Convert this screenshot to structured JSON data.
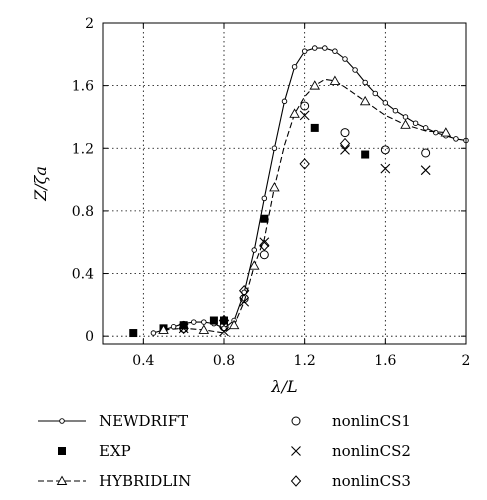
{
  "chart_data": {
    "type": "line",
    "title": "",
    "xlabel": "λ/L",
    "ylabel": "Z/ζa",
    "xlim": [
      0.2,
      2.0
    ],
    "ylim": [
      -0.05,
      2.0
    ],
    "xticks": [
      0.4,
      0.8,
      1.2,
      1.6,
      2.0
    ],
    "yticks": [
      0,
      0.4,
      0.8,
      1.2,
      1.6,
      2.0
    ],
    "xtick_labels": [
      "0.4",
      "0.8",
      "1.2",
      "1.6",
      "2"
    ],
    "ytick_labels": [
      "0",
      "0.4",
      "0.8",
      "1.2",
      "1.6",
      "2"
    ],
    "grid": true,
    "legend_position": "bottom",
    "series": [
      {
        "name": "NEWDRIFT",
        "style": "solid-line-circle",
        "x": [
          0.45,
          0.5,
          0.55,
          0.6,
          0.65,
          0.7,
          0.75,
          0.8,
          0.85,
          0.9,
          0.95,
          1.0,
          1.05,
          1.1,
          1.15,
          1.2,
          1.25,
          1.3,
          1.35,
          1.4,
          1.45,
          1.5,
          1.55,
          1.6,
          1.65,
          1.7,
          1.75,
          1.8,
          1.85,
          1.9,
          1.95,
          2.0
        ],
        "y": [
          0.02,
          0.04,
          0.06,
          0.08,
          0.09,
          0.09,
          0.08,
          0.05,
          0.1,
          0.28,
          0.55,
          0.88,
          1.2,
          1.5,
          1.72,
          1.82,
          1.84,
          1.84,
          1.82,
          1.77,
          1.7,
          1.62,
          1.55,
          1.49,
          1.44,
          1.4,
          1.36,
          1.33,
          1.3,
          1.28,
          1.26,
          1.25
        ]
      },
      {
        "name": "EXP",
        "style": "filled-square",
        "x": [
          0.35,
          0.5,
          0.6,
          0.75,
          0.8,
          1.0,
          1.25,
          1.5
        ],
        "y": [
          0.02,
          0.05,
          0.07,
          0.1,
          0.1,
          0.75,
          1.33,
          1.16
        ]
      },
      {
        "name": "HYBRIDLIN",
        "style": "dashed-line-triangle",
        "x": [
          0.5,
          0.6,
          0.7,
          0.8,
          0.85,
          0.9,
          0.95,
          1.0,
          1.05,
          1.1,
          1.15,
          1.2,
          1.25,
          1.3,
          1.35,
          1.4,
          1.5,
          1.6,
          1.7,
          1.8,
          1.9
        ],
        "y": [
          0.04,
          0.05,
          0.04,
          0.02,
          0.07,
          0.22,
          0.45,
          0.62,
          0.95,
          1.22,
          1.42,
          1.53,
          1.6,
          1.64,
          1.63,
          1.59,
          1.5,
          1.41,
          1.35,
          1.31,
          1.3
        ]
      },
      {
        "name": "nonlinCS1",
        "style": "open-circle",
        "x": [
          0.9,
          1.0,
          1.2,
          1.4,
          1.6,
          1.8
        ],
        "y": [
          0.24,
          0.52,
          1.47,
          1.3,
          1.19,
          1.17
        ]
      },
      {
        "name": "nonlinCS2",
        "style": "cross",
        "x": [
          0.9,
          1.0,
          1.2,
          1.4,
          1.6,
          1.8
        ],
        "y": [
          0.22,
          0.6,
          1.41,
          1.19,
          1.07,
          1.06
        ]
      },
      {
        "name": "nonlinCS3",
        "style": "open-diamond",
        "x": [
          0.6,
          0.8,
          0.9,
          1.0,
          1.2,
          1.4
        ],
        "y": [
          0.05,
          0.1,
          0.29,
          0.58,
          1.1,
          1.23
        ]
      }
    ],
    "extra_markers": [
      {
        "series": "nonlinCS1",
        "x": [
          0.6,
          0.8
        ],
        "y": [
          0.05,
          0.06
        ]
      },
      {
        "series": "nonlinCS2",
        "x": [
          0.6,
          0.8
        ],
        "y": [
          0.05,
          0.03
        ]
      }
    ]
  },
  "legend": {
    "items": [
      {
        "label": "NEWDRIFT"
      },
      {
        "label": "EXP"
      },
      {
        "label": "HYBRIDLIN"
      },
      {
        "label": "nonlinCS1"
      },
      {
        "label": "nonlinCS2"
      },
      {
        "label": "nonlinCS3"
      }
    ]
  }
}
